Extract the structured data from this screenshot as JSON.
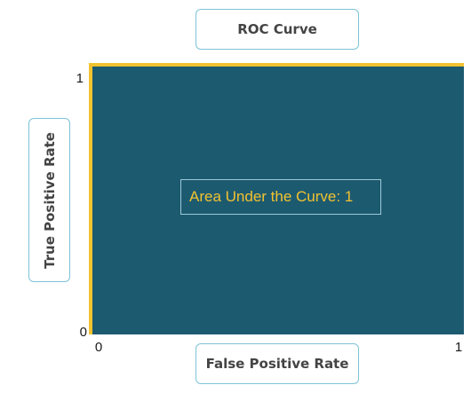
{
  "chart_data": {
    "type": "area",
    "title": "ROC Curve",
    "xlabel": "False Positive Rate",
    "ylabel": "True Positive Rate",
    "xlim": [
      0,
      1
    ],
    "ylim": [
      0,
      1
    ],
    "x_ticks": [
      "0",
      "1"
    ],
    "y_ticks": [
      "0",
      "1"
    ],
    "series": [
      {
        "x": [
          0,
          0,
          1
        ],
        "y": [
          0,
          1,
          1
        ]
      }
    ],
    "annotation": "Area Under the Curve: 1",
    "fill_color": "#1c5a70",
    "curve_color": "#f2c230",
    "grid": false
  }
}
